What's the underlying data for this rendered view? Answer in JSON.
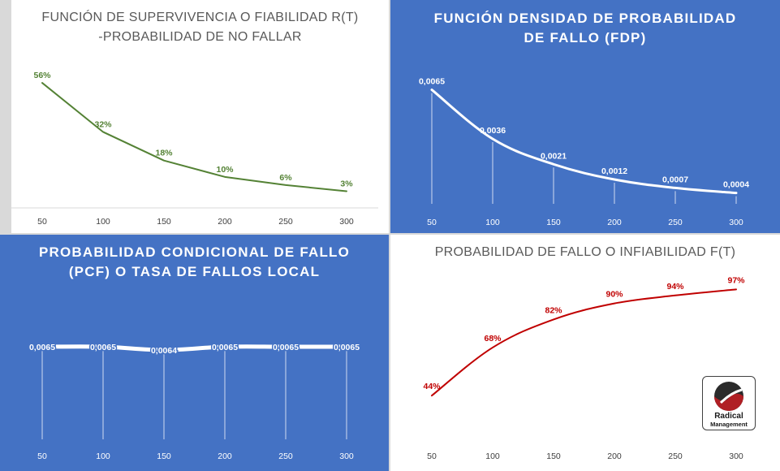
{
  "chart_data": [
    {
      "type": "line",
      "title_lines": [
        "FUNCIÓN DE SUPERVIVENCIA O FIABILIDAD R(T)",
        "-PROBABILIDAD DE NO FALLAR"
      ],
      "categories": [
        "50",
        "100",
        "150",
        "200",
        "250",
        "300"
      ],
      "values": [
        56,
        32,
        18,
        10,
        6,
        3
      ],
      "data_labels": [
        "56%",
        "32%",
        "18%",
        "10%",
        "6%",
        "3%"
      ],
      "ylim": [
        0,
        60
      ],
      "line_color": "#548235",
      "background": "#ffffff",
      "grid": false,
      "data_label_color": "#548235"
    },
    {
      "type": "line",
      "title_lines": [
        "FUNCIÓN DENSIDAD DE PROBABILIDAD",
        "DE FALLO (FDP)"
      ],
      "categories": [
        "50",
        "100",
        "150",
        "200",
        "250",
        "300"
      ],
      "values": [
        0.0065,
        0.0036,
        0.0021,
        0.0012,
        0.0007,
        0.0004
      ],
      "data_labels": [
        "0,0065",
        "0,0036",
        "0,0021",
        "0,0012",
        "0,0007",
        "0,0004"
      ],
      "ylim": [
        0,
        0.0072
      ],
      "line_color": "#ffffff",
      "background": "#4472c4",
      "drop_lines": true,
      "grid": false,
      "data_label_color": "#ffffff"
    },
    {
      "type": "line",
      "title_lines": [
        "PROBABILIDAD CONDICIONAL DE FALLO",
        "(PCF) O TASA DE FALLOS LOCAL"
      ],
      "categories": [
        "50",
        "100",
        "150",
        "200",
        "250",
        "300"
      ],
      "values": [
        0.0065,
        0.0065,
        0.0064,
        0.0065,
        0.0065,
        0.0065
      ],
      "data_labels": [
        "0,0065",
        "0,0065",
        "0,0064",
        "0,0065",
        "0,0065",
        "0,0065"
      ],
      "ylim": [
        0.0055,
        0.007
      ],
      "line_color": "#ffffff",
      "background": "#4472c4",
      "drop_lines": true,
      "grid": false,
      "data_label_color": "#ffffff"
    },
    {
      "type": "line",
      "title_lines": [
        "PROBABILIDAD DE FALLO O INFIABILIDAD F(T)"
      ],
      "categories": [
        "50",
        "100",
        "150",
        "200",
        "250",
        "300"
      ],
      "values": [
        44,
        68,
        82,
        90,
        94,
        97
      ],
      "data_labels": [
        "44%",
        "68%",
        "82%",
        "90%",
        "94%",
        "97%"
      ],
      "ylim": [
        40,
        100
      ],
      "line_color": "#c00000",
      "background": "#ffffff",
      "grid": false,
      "data_label_color": "#c00000"
    }
  ],
  "logo": {
    "line1": "Radical",
    "line2": "Management"
  }
}
